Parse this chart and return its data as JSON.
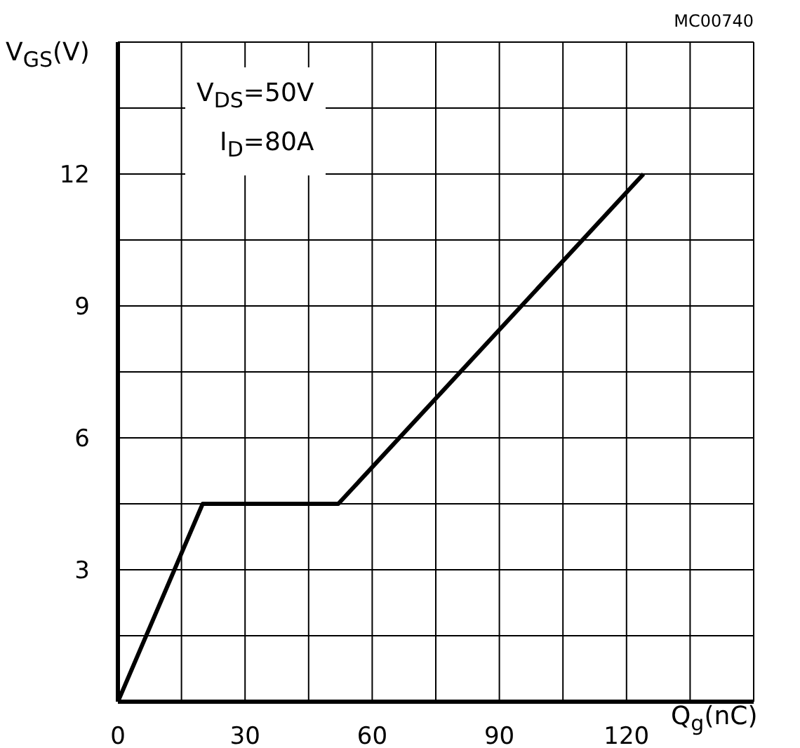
{
  "chart_data": {
    "type": "line",
    "xlabel": "Q$_{g}$(nC)",
    "ylabel": "V$_{GS}$(V)",
    "annotations": [
      "V$_{DS}$=50V",
      "I$_{D}$=80A",
      "MC00740"
    ],
    "x": [
      0,
      20,
      52,
      124
    ],
    "series": [
      {
        "color": "#000000",
        "values": [
          0,
          4.5,
          4.5,
          12
        ]
      }
    ],
    "xlim": [
      0,
      150
    ],
    "ylim": [
      0,
      15
    ],
    "xticks": [
      0,
      {
        "value": 15,
        "label": null
      },
      30,
      {
        "value": 45,
        "label": null
      },
      60,
      {
        "value": 75,
        "label": null
      },
      90,
      {
        "value": 105,
        "label": null
      },
      120,
      {
        "value": 135,
        "label": null
      },
      {
        "value": 150,
        "label": null
      }
    ],
    "yticks": [
      {
        "value": 0,
        "label": null
      },
      {
        "value": 1.5,
        "label": null
      },
      3,
      {
        "value": 4.5,
        "label": null
      },
      6,
      {
        "value": 7.5,
        "label": null
      },
      9,
      {
        "value": 10.5,
        "label": null
      },
      12,
      {
        "value": 13.5,
        "label": null
      },
      {
        "value": 15,
        "label": null
      }
    ],
    "grid": true,
    "legend": false,
    "marker": "none",
    "line_style": "solid"
  }
}
